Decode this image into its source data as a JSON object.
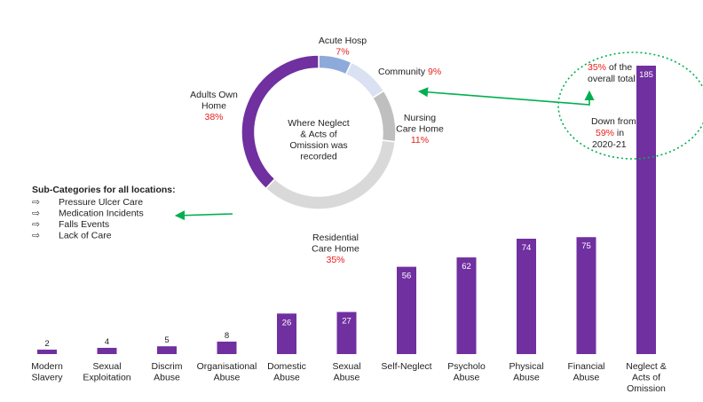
{
  "chart_data": [
    {
      "type": "bar",
      "categories": [
        [
          "Modern",
          "Slavery"
        ],
        [
          "Sexual",
          "Exploitation"
        ],
        [
          "Discrim",
          "Abuse"
        ],
        [
          "Organisational",
          "Abuse"
        ],
        [
          "Domestic",
          "Abuse"
        ],
        [
          "Sexual",
          "Abuse"
        ],
        [
          "Self-Neglect"
        ],
        [
          "Psycholo",
          "Abuse"
        ],
        [
          "Physical",
          "Abuse"
        ],
        [
          "Financial",
          "Abuse"
        ],
        [
          "Neglect &",
          "Acts of",
          "Omission"
        ]
      ],
      "values": [
        2,
        4,
        5,
        8,
        26,
        27,
        56,
        62,
        74,
        75,
        185
      ],
      "ylim": [
        0,
        185
      ],
      "bar_color": "#7030a0",
      "grid": false
    },
    {
      "type": "pie",
      "donut": true,
      "center_label": [
        "Where Neglect",
        "& Acts of",
        "Omission was",
        "recorded"
      ],
      "slices": [
        {
          "label": [
            "Acute Hosp"
          ],
          "value": 7,
          "pct": "7%",
          "color": "#8eaadb"
        },
        {
          "label": [
            "Community"
          ],
          "value": 9,
          "pct": "9%",
          "color": "#d9e1f2"
        },
        {
          "label": [
            "Nursing",
            "Care Home"
          ],
          "value": 11,
          "pct": "11%",
          "color": "#bfbfbf"
        },
        {
          "label": [
            "Residential",
            "Care Home"
          ],
          "value": 35,
          "pct": "35%",
          "color": "#d9d9d9"
        },
        {
          "label": [
            "Adults Own",
            "Home"
          ],
          "value": 38,
          "pct": "38%",
          "color": "#7030a0"
        }
      ]
    }
  ],
  "subcategories": {
    "title": "Sub-Categories for all locations:",
    "bullet": "⇨",
    "items": [
      "Pressure Ulcer Care",
      "Medication Incidents",
      "Falls Events",
      "Lack of Care"
    ]
  },
  "callout": {
    "pct_now": "35%",
    "text_1a": " of the",
    "text_1b": "overall total",
    "text_2": "Down from",
    "pct_prev": "59%",
    "text_2b": " in",
    "text_2c": "2020-21"
  },
  "colors": {
    "accent": "#7030a0",
    "highlight": "#e8201c",
    "arrow": "#00b050"
  }
}
